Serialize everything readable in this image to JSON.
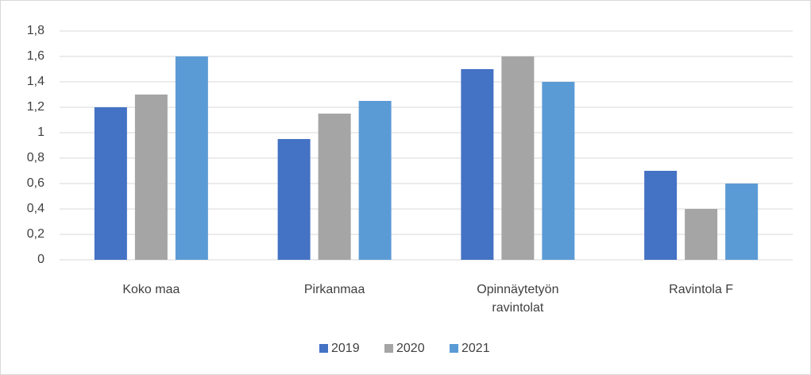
{
  "chart_data": {
    "type": "bar",
    "categories": [
      "Koko maa",
      "Pirkanmaa",
      "Opinnäytetyön ravintolat",
      "Ravintola F"
    ],
    "series": [
      {
        "name": "2019",
        "color": "#4472c4",
        "values": [
          1.2,
          0.95,
          1.5,
          0.7
        ]
      },
      {
        "name": "2020",
        "color": "#a5a5a5",
        "values": [
          1.3,
          1.15,
          1.6,
          0.4
        ]
      },
      {
        "name": "2021",
        "color": "#5b9bd5",
        "values": [
          1.6,
          1.25,
          1.4,
          0.6
        ]
      }
    ],
    "ylim": [
      0,
      1.8
    ],
    "yticks": [
      0,
      {
        "value": 0.2,
        "label": "0,2"
      },
      {
        "value": 0.4,
        "label": "0,4"
      },
      {
        "value": 0.6,
        "label": "0,6"
      },
      {
        "value": 0.8,
        "label": "0,8"
      },
      1,
      {
        "value": 1.2,
        "label": "1,2"
      },
      {
        "value": 1.4,
        "label": "1,4"
      },
      {
        "value": 1.6,
        "label": "1,6"
      },
      {
        "value": 1.8,
        "label": "1,8"
      }
    ],
    "grid": true,
    "legend": "bottom"
  }
}
